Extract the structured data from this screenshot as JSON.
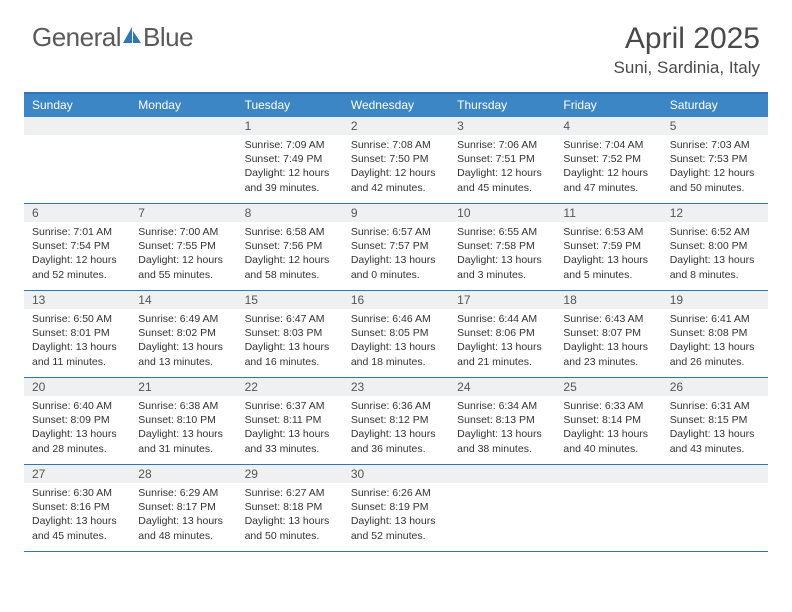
{
  "logo": {
    "part1": "General",
    "part2": "Blue"
  },
  "title": "April 2025",
  "location": "Suni, Sardinia, Italy",
  "colors": {
    "header_bar": "#3d86c6",
    "border": "#2f76b8",
    "daynum_bg": "#eef0f2",
    "text": "#333333",
    "logo_gray": "#5a5a5a",
    "logo_blue": "#2f76b8"
  },
  "weekdays": [
    "Sunday",
    "Monday",
    "Tuesday",
    "Wednesday",
    "Thursday",
    "Friday",
    "Saturday"
  ],
  "month_start_weekday": 2,
  "days": [
    {
      "n": 1,
      "sunrise": "7:09 AM",
      "sunset": "7:49 PM",
      "daylight": "12 hours and 39 minutes."
    },
    {
      "n": 2,
      "sunrise": "7:08 AM",
      "sunset": "7:50 PM",
      "daylight": "12 hours and 42 minutes."
    },
    {
      "n": 3,
      "sunrise": "7:06 AM",
      "sunset": "7:51 PM",
      "daylight": "12 hours and 45 minutes."
    },
    {
      "n": 4,
      "sunrise": "7:04 AM",
      "sunset": "7:52 PM",
      "daylight": "12 hours and 47 minutes."
    },
    {
      "n": 5,
      "sunrise": "7:03 AM",
      "sunset": "7:53 PM",
      "daylight": "12 hours and 50 minutes."
    },
    {
      "n": 6,
      "sunrise": "7:01 AM",
      "sunset": "7:54 PM",
      "daylight": "12 hours and 52 minutes."
    },
    {
      "n": 7,
      "sunrise": "7:00 AM",
      "sunset": "7:55 PM",
      "daylight": "12 hours and 55 minutes."
    },
    {
      "n": 8,
      "sunrise": "6:58 AM",
      "sunset": "7:56 PM",
      "daylight": "12 hours and 58 minutes."
    },
    {
      "n": 9,
      "sunrise": "6:57 AM",
      "sunset": "7:57 PM",
      "daylight": "13 hours and 0 minutes."
    },
    {
      "n": 10,
      "sunrise": "6:55 AM",
      "sunset": "7:58 PM",
      "daylight": "13 hours and 3 minutes."
    },
    {
      "n": 11,
      "sunrise": "6:53 AM",
      "sunset": "7:59 PM",
      "daylight": "13 hours and 5 minutes."
    },
    {
      "n": 12,
      "sunrise": "6:52 AM",
      "sunset": "8:00 PM",
      "daylight": "13 hours and 8 minutes."
    },
    {
      "n": 13,
      "sunrise": "6:50 AM",
      "sunset": "8:01 PM",
      "daylight": "13 hours and 11 minutes."
    },
    {
      "n": 14,
      "sunrise": "6:49 AM",
      "sunset": "8:02 PM",
      "daylight": "13 hours and 13 minutes."
    },
    {
      "n": 15,
      "sunrise": "6:47 AM",
      "sunset": "8:03 PM",
      "daylight": "13 hours and 16 minutes."
    },
    {
      "n": 16,
      "sunrise": "6:46 AM",
      "sunset": "8:05 PM",
      "daylight": "13 hours and 18 minutes."
    },
    {
      "n": 17,
      "sunrise": "6:44 AM",
      "sunset": "8:06 PM",
      "daylight": "13 hours and 21 minutes."
    },
    {
      "n": 18,
      "sunrise": "6:43 AM",
      "sunset": "8:07 PM",
      "daylight": "13 hours and 23 minutes."
    },
    {
      "n": 19,
      "sunrise": "6:41 AM",
      "sunset": "8:08 PM",
      "daylight": "13 hours and 26 minutes."
    },
    {
      "n": 20,
      "sunrise": "6:40 AM",
      "sunset": "8:09 PM",
      "daylight": "13 hours and 28 minutes."
    },
    {
      "n": 21,
      "sunrise": "6:38 AM",
      "sunset": "8:10 PM",
      "daylight": "13 hours and 31 minutes."
    },
    {
      "n": 22,
      "sunrise": "6:37 AM",
      "sunset": "8:11 PM",
      "daylight": "13 hours and 33 minutes."
    },
    {
      "n": 23,
      "sunrise": "6:36 AM",
      "sunset": "8:12 PM",
      "daylight": "13 hours and 36 minutes."
    },
    {
      "n": 24,
      "sunrise": "6:34 AM",
      "sunset": "8:13 PM",
      "daylight": "13 hours and 38 minutes."
    },
    {
      "n": 25,
      "sunrise": "6:33 AM",
      "sunset": "8:14 PM",
      "daylight": "13 hours and 40 minutes."
    },
    {
      "n": 26,
      "sunrise": "6:31 AM",
      "sunset": "8:15 PM",
      "daylight": "13 hours and 43 minutes."
    },
    {
      "n": 27,
      "sunrise": "6:30 AM",
      "sunset": "8:16 PM",
      "daylight": "13 hours and 45 minutes."
    },
    {
      "n": 28,
      "sunrise": "6:29 AM",
      "sunset": "8:17 PM",
      "daylight": "13 hours and 48 minutes."
    },
    {
      "n": 29,
      "sunrise": "6:27 AM",
      "sunset": "8:18 PM",
      "daylight": "13 hours and 50 minutes."
    },
    {
      "n": 30,
      "sunrise": "6:26 AM",
      "sunset": "8:19 PM",
      "daylight": "13 hours and 52 minutes."
    }
  ],
  "labels": {
    "sunrise": "Sunrise: ",
    "sunset": "Sunset: ",
    "daylight": "Daylight: "
  }
}
